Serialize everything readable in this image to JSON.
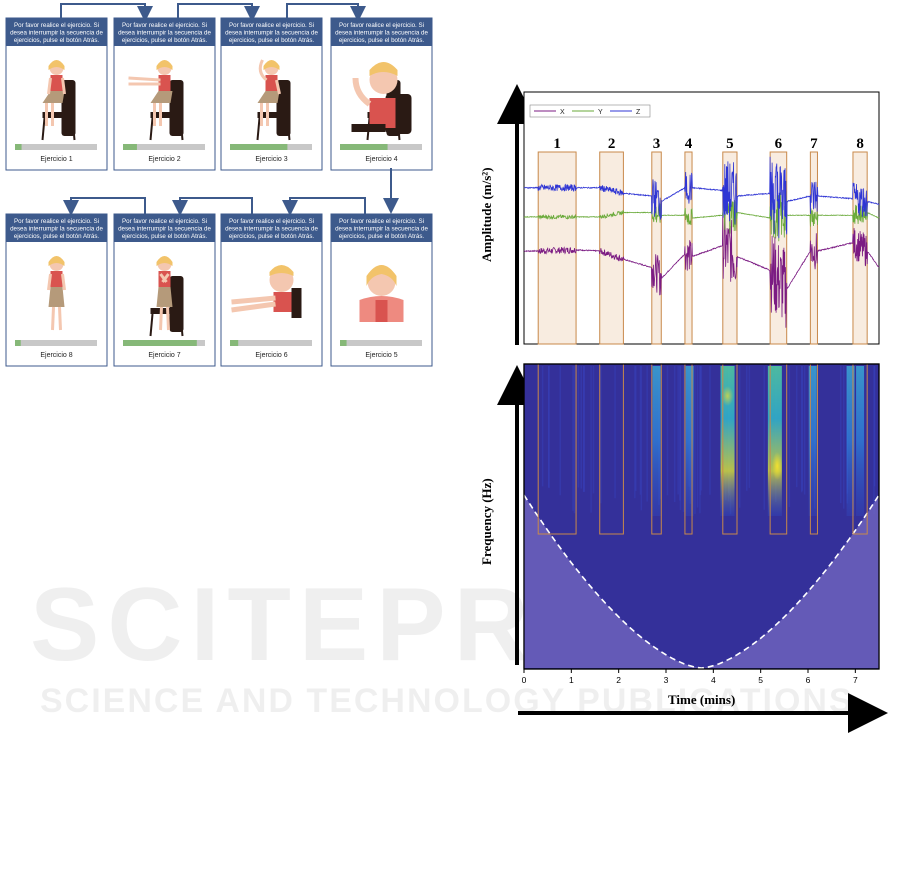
{
  "watermark": {
    "line1": "SCITEPRESS",
    "line2": "SCIENCE AND TECHNOLOGY PUBLICATIONS"
  },
  "app_cards": [
    {
      "instruction": [
        "Por favor realice el ejercicio. Si",
        "desea interrumpir la secuencia de",
        "ejercicios, pulse el botón Atrás."
      ],
      "label": "Ejercicio 1",
      "progress": 0.08,
      "figure": "seated-arms-rest"
    },
    {
      "instruction": [
        "Por favor realice el ejercicio. Si",
        "desea interrumpir la secuencia de",
        "ejercicios, pulse el botón Atrás."
      ],
      "label": "Ejercicio 2",
      "progress": 0.17,
      "figure": "seated-arms-forward"
    },
    {
      "instruction": [
        "Por favor realice el ejercicio. Si",
        "desea interrumpir la secuencia de",
        "ejercicios, pulse el botón Atrás."
      ],
      "label": "Ejercicio 3",
      "progress": 0.7,
      "figure": "seated-arm-raise"
    },
    {
      "instruction": [
        "Por favor realice el ejercicio. Si",
        "desea interrumpir la secuencia de",
        "ejercicios, pulse el botón Atrás."
      ],
      "label": "Ejercicio 4",
      "progress": 0.58,
      "figure": "seated-closeup-arm"
    },
    {
      "instruction": [
        "Por favor realice el ejercicio. Si",
        "desea interrumpir la secuencia de",
        "ejercicios, pulse el botón Atrás."
      ],
      "label": "Ejercicio 8",
      "progress": 0.07,
      "figure": "standing"
    },
    {
      "instruction": [
        "Por favor realice el ejercicio. Si",
        "desea interrumpir la secuencia de",
        "ejercicios, pulse el botón Atrás."
      ],
      "label": "Ejercicio 7",
      "progress": 0.9,
      "figure": "sit-to-stand"
    },
    {
      "instruction": [
        "Por favor realice el ejercicio. Si",
        "desea interrumpir la secuencia de",
        "ejercicios, pulse el botón Atrás."
      ],
      "label": "Ejercicio 6",
      "progress": 0.1,
      "figure": "arms-extended"
    },
    {
      "instruction": [
        "Por favor realice el ejercicio. Si",
        "desea interrumpir la secuencia de",
        "ejercicios, pulse el botón Atrás."
      ],
      "label": "Ejercicio 5",
      "progress": 0.08,
      "figure": "shoulders"
    }
  ],
  "colors": {
    "card_header": "#3d5a8c",
    "progress_fill": "#86b878",
    "progress_track": "#c8c8c8",
    "arrow": "#3d5a8c",
    "segment_fill": "#f8ece0",
    "segment_border": "#c8894a",
    "series_x": "#7b1b83",
    "series_y": "#6aaa3a",
    "series_z": "#2f35d4",
    "spectrogram_bg": "#34309a",
    "coi_shade": "#7468c0"
  },
  "chart_data": [
    {
      "type": "line",
      "ylabel": "Amplitude (m/s²)",
      "legend": [
        "X",
        "Y",
        "Z"
      ],
      "legend_position": "top-left",
      "segments": [
        "1",
        "2",
        "3",
        "4",
        "5",
        "6",
        "7",
        "8"
      ],
      "segment_ranges_min": [
        [
          0.3,
          1.1
        ],
        [
          1.6,
          2.1
        ],
        [
          2.7,
          2.9
        ],
        [
          3.4,
          3.55
        ],
        [
          4.2,
          4.5
        ],
        [
          5.2,
          5.55
        ],
        [
          6.05,
          6.2
        ],
        [
          6.95,
          7.25
        ]
      ],
      "series": [
        {
          "name": "X",
          "x": [
            0,
            0.3,
            1.1,
            1.6,
            2.1,
            2.7,
            2.9,
            3.4,
            3.55,
            4.2,
            4.5,
            5.2,
            5.55,
            6.05,
            6.2,
            6.95,
            7.25,
            7.5
          ],
          "values": [
            -0.6,
            -0.6,
            -0.58,
            -0.6,
            -0.75,
            -0.9,
            -1.1,
            -0.65,
            -0.7,
            -0.5,
            -0.7,
            -0.95,
            -1.3,
            -0.6,
            -0.6,
            -0.45,
            -0.6,
            -0.9
          ]
        },
        {
          "name": "Y",
          "x": [
            0,
            0.3,
            1.1,
            1.6,
            2.1,
            2.7,
            2.9,
            3.4,
            3.55,
            4.2,
            4.5,
            5.2,
            5.55,
            6.05,
            6.2,
            6.95,
            7.25,
            7.5
          ],
          "values": [
            0.02,
            0.02,
            0.02,
            0.02,
            0.1,
            0.1,
            0.05,
            0.05,
            0.0,
            0.05,
            0.1,
            0.0,
            0.05,
            0.05,
            0.05,
            0.05,
            0.1,
            0.0
          ]
        },
        {
          "name": "Z",
          "x": [
            0,
            0.3,
            1.1,
            1.6,
            2.1,
            2.7,
            2.9,
            3.4,
            3.55,
            4.2,
            4.5,
            5.2,
            5.55,
            6.05,
            6.2,
            6.95,
            7.25,
            7.5
          ],
          "values": [
            0.55,
            0.55,
            0.55,
            0.55,
            0.45,
            0.4,
            0.3,
            0.55,
            0.55,
            0.5,
            0.4,
            0.45,
            0.3,
            0.4,
            0.4,
            0.35,
            0.3,
            0.25
          ]
        }
      ]
    },
    {
      "type": "heatmap",
      "xlabel": "Time (mins)",
      "ylabel": "Frequency (Hz)",
      "xlim": [
        0,
        7.5
      ],
      "xticks": [
        "0",
        "1",
        "2",
        "3",
        "4",
        "5",
        "6",
        "7"
      ],
      "hotspots_min": [
        2.8,
        3.5,
        4.3,
        5.3,
        6.1,
        6.9,
        7.1
      ]
    }
  ]
}
